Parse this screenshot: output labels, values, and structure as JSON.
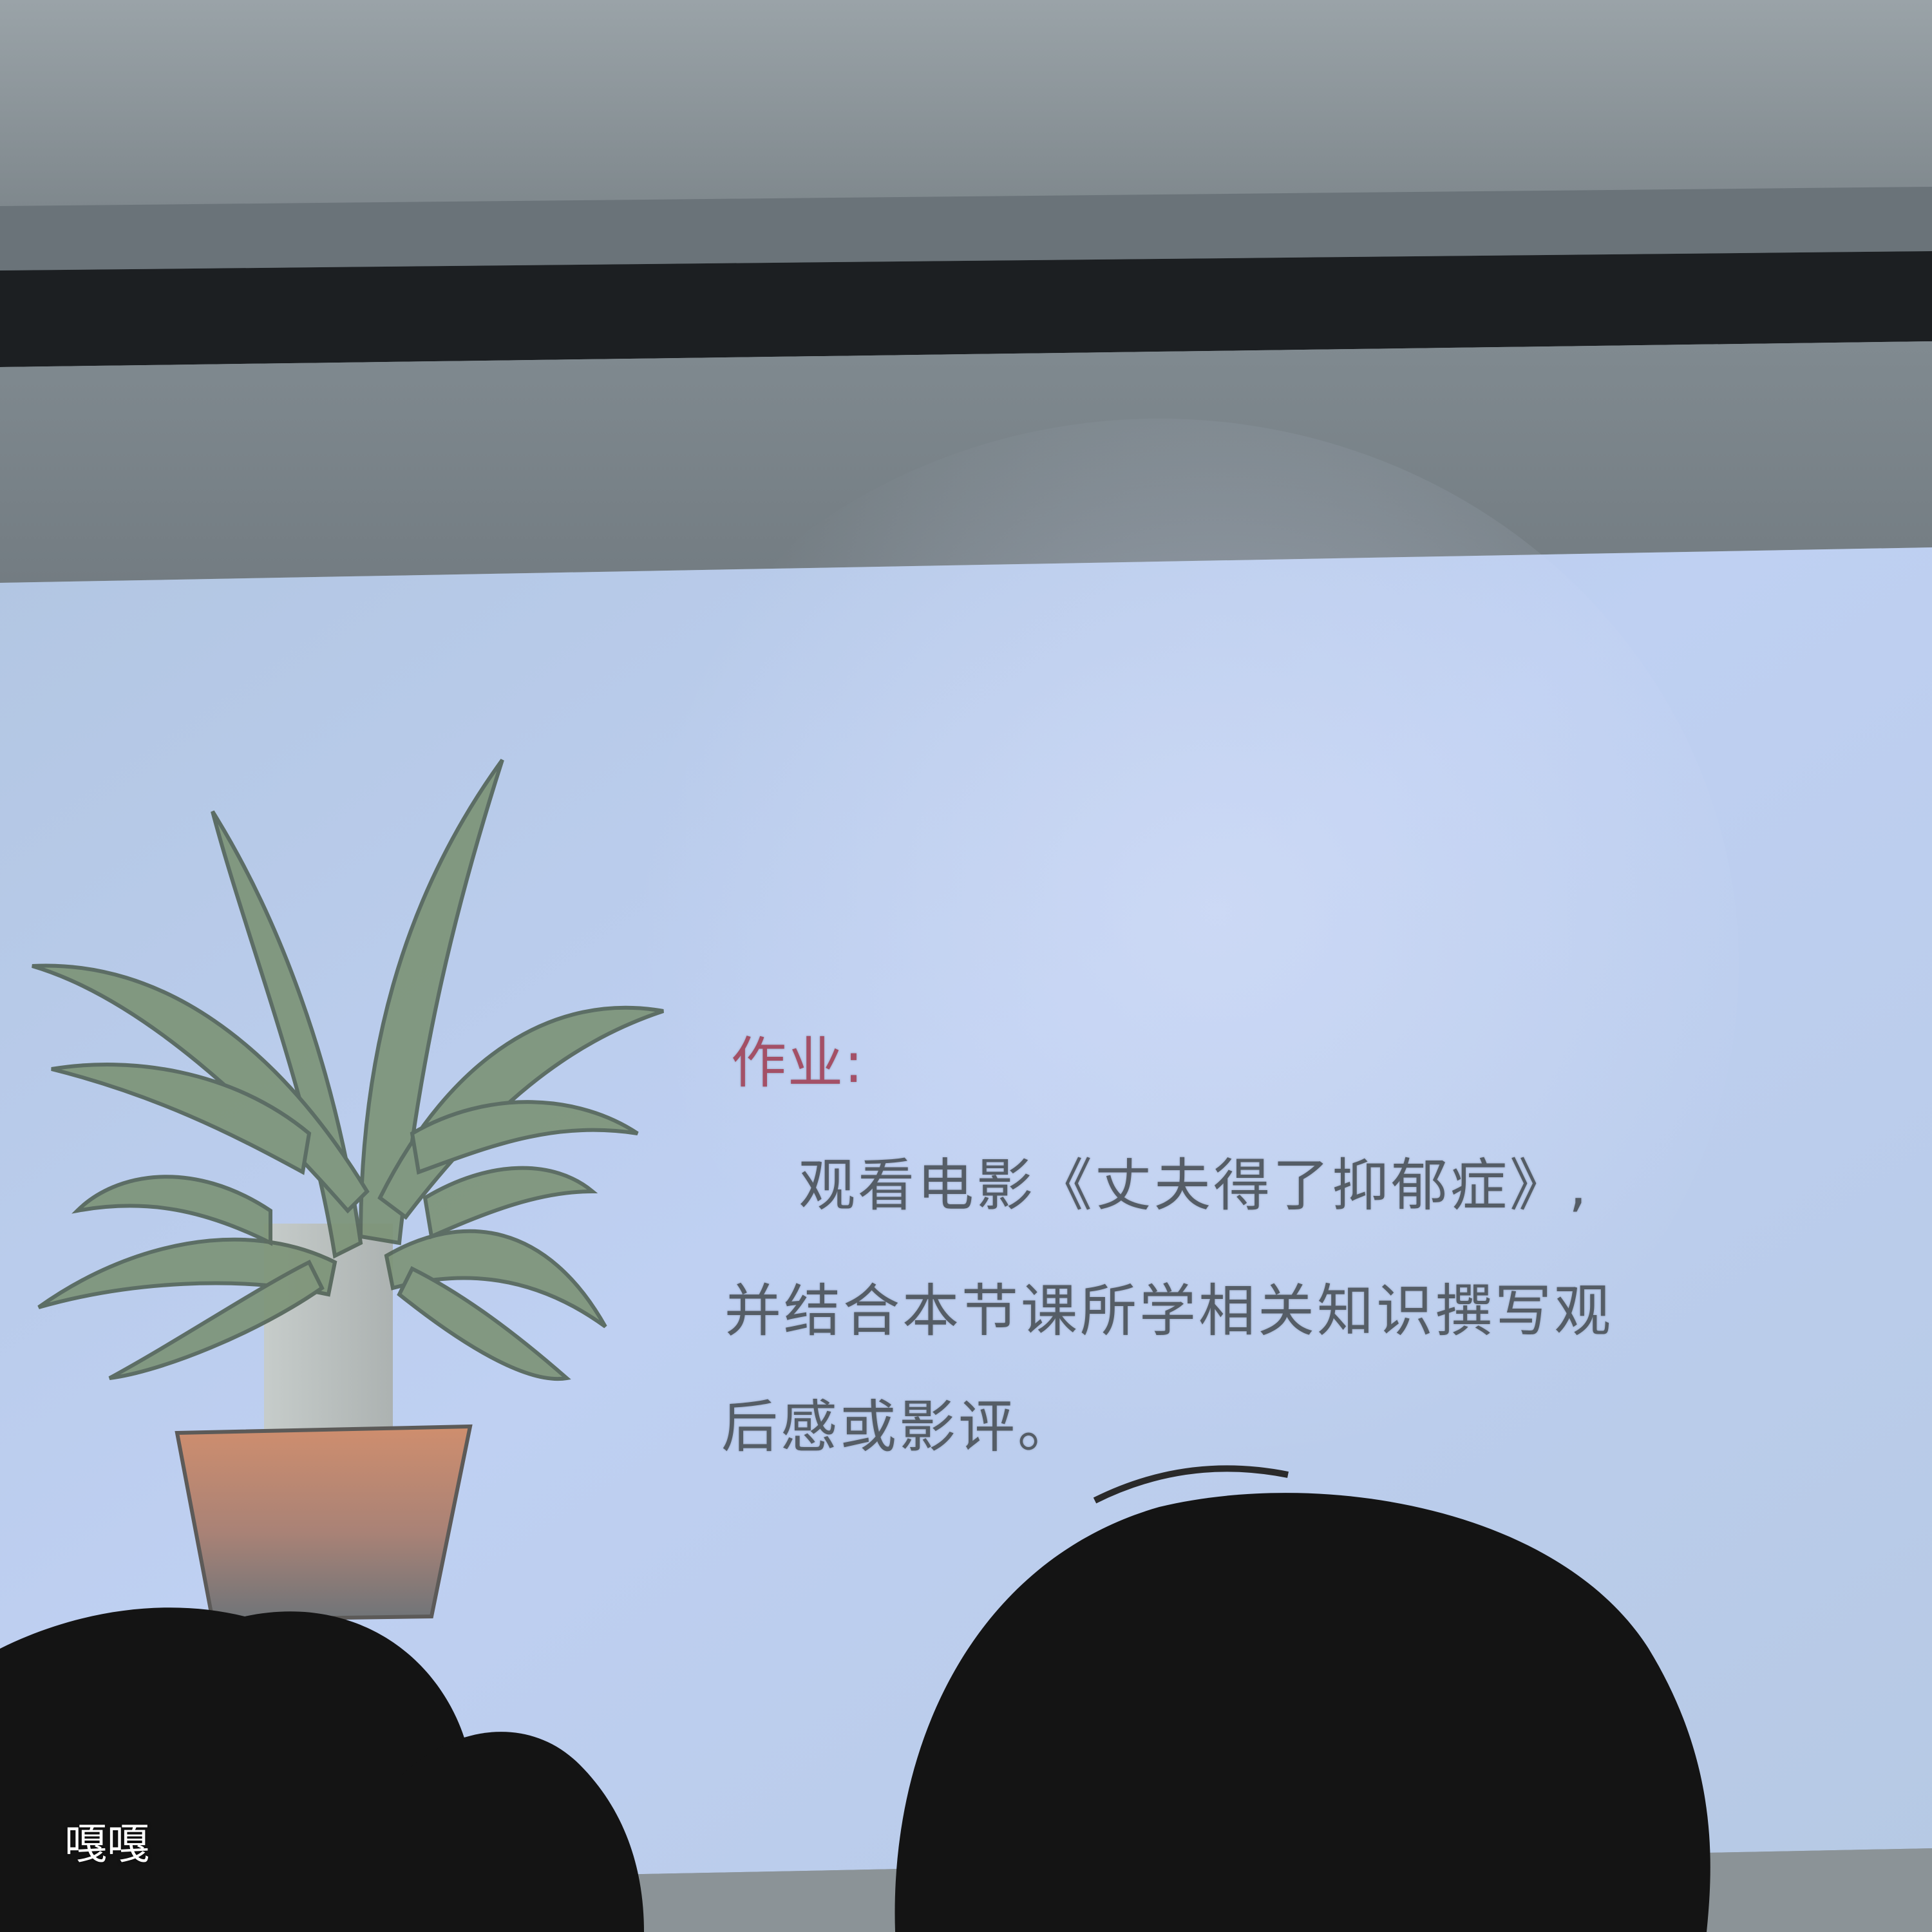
{
  "slide": {
    "title": "作业:",
    "line1": "观看电影《丈夫得了抑郁症》,",
    "line2": "并结合本节课所学相关知识撰写观",
    "line3": "后感或影评。"
  },
  "watermark": "嘎嘎",
  "colors": {
    "wall": "#8e979d",
    "screen_bar": "#1c1f22",
    "screen_face": "#b9c9ea",
    "title_red": "#a14358",
    "body_text": "#4a5158",
    "leaf_green": "#7d9478",
    "pot": "#c98b6e",
    "heads": "#141414"
  }
}
